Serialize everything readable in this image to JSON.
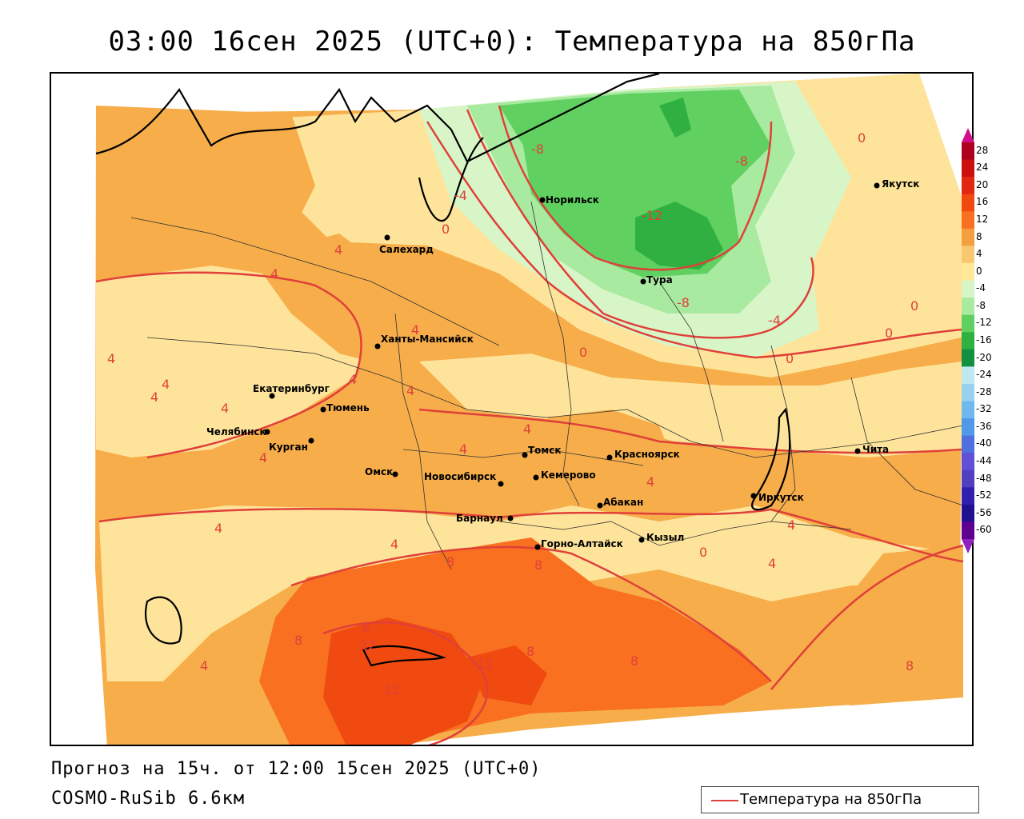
{
  "title": "03:00 16сен 2025 (UTC+0): Температура на 850гПа",
  "forecast_text": "Прогноз на 15ч. от 12:00 15сен 2025 (UTC+0)",
  "model_text": "COSMO-RuSib 6.6км",
  "legend": {
    "label": "Температура на 850гПа",
    "line_color": "#e0403a"
  },
  "colorbar": {
    "ticks": [
      "28",
      "24",
      "20",
      "16",
      "12",
      "8",
      "4",
      "0",
      "-4",
      "-8",
      "-12",
      "-16",
      "-20",
      "-24",
      "-28",
      "-32",
      "-36",
      "-40",
      "-44",
      "-48",
      "-52",
      "-56",
      "-60"
    ],
    "colors": [
      "#b00020",
      "#cc1010",
      "#e02810",
      "#f04a10",
      "#f87020",
      "#f5a040",
      "#f8c870",
      "#ffe898",
      "#d8f5c8",
      "#a8eaa0",
      "#60d060",
      "#30b040",
      "#109040",
      "#c0e8f0",
      "#98d0f0",
      "#70b8f0",
      "#5098e8",
      "#5070e0",
      "#6050d8",
      "#5040c0",
      "#3020b0",
      "#201090",
      "#600090"
    ]
  },
  "cities": [
    {
      "name": "Салехард"
    },
    {
      "name": "Норильск"
    },
    {
      "name": "Тура"
    },
    {
      "name": "Якутск"
    },
    {
      "name": "Ханты-Мансийск"
    },
    {
      "name": "Екатеринбург"
    },
    {
      "name": "Тюмень"
    },
    {
      "name": "Челябинск"
    },
    {
      "name": "Курган"
    },
    {
      "name": "Омск"
    },
    {
      "name": "Новосибирск"
    },
    {
      "name": "Томск"
    },
    {
      "name": "Кемерово"
    },
    {
      "name": "Красноярск"
    },
    {
      "name": "Барнаул"
    },
    {
      "name": "Абакан"
    },
    {
      "name": "Иркутск"
    },
    {
      "name": "Чита"
    },
    {
      "name": "Горно-Алтайск"
    },
    {
      "name": "Кызыл"
    }
  ],
  "isoline_labels": [
    "-8",
    "-8",
    "-12",
    "-8",
    "-4",
    "-4",
    "0",
    "0",
    "0",
    "0",
    "0",
    "0",
    "0",
    "4",
    "4",
    "4",
    "4",
    "4",
    "4",
    "4",
    "4",
    "4",
    "4",
    "4",
    "4",
    "4",
    "4",
    "4",
    "4",
    "4",
    "4",
    "8",
    "8",
    "8",
    "8",
    "8",
    "8",
    "8",
    "12",
    "12",
    "12"
  ]
}
